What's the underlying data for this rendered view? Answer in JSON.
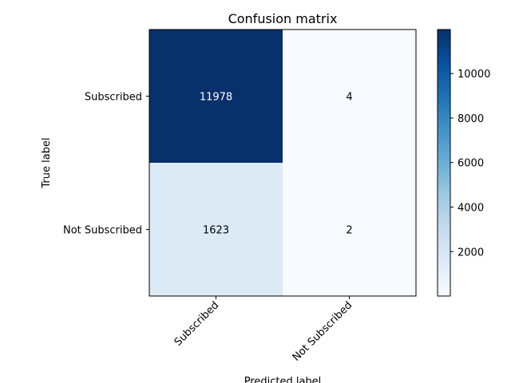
{
  "chart_data": {
    "type": "heatmap",
    "title": "Confusion matrix",
    "xlabel": "Predicted label",
    "ylabel": "True label",
    "x_categories": [
      "Subscribed",
      "Not Subscribed"
    ],
    "y_categories": [
      "Subscribed",
      "Not Subscribed"
    ],
    "values": [
      [
        11978,
        4
      ],
      [
        1623,
        2
      ]
    ],
    "colormap": "Blues",
    "colorbar": {
      "ticks": [
        2000,
        4000,
        6000,
        8000,
        10000
      ],
      "tick_labels": [
        "2000",
        "4000",
        "6000",
        "8000",
        "10000"
      ],
      "range": [
        2,
        11978
      ]
    },
    "x_tick_rotation_deg": 45,
    "grid": false
  }
}
